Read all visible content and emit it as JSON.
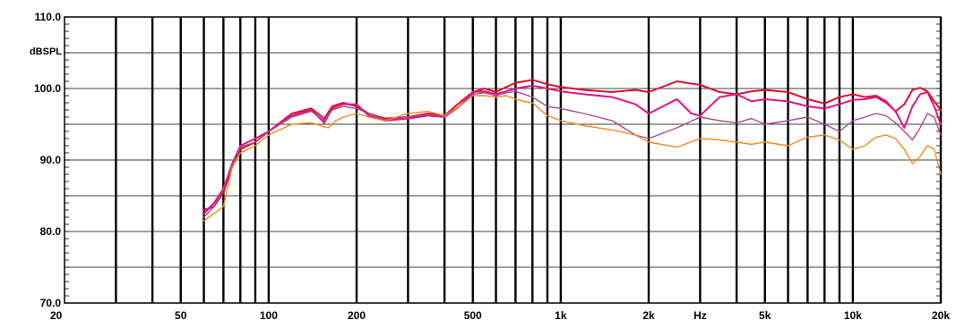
{
  "chart_data": {
    "type": "line",
    "y_unit_label": "dBSPL",
    "x_unit_label": "Hz",
    "x_scale": "log",
    "xlim": [
      20,
      20000
    ],
    "ylim": [
      70,
      110
    ],
    "grid": true,
    "y_ticks": [
      {
        "value": 110,
        "label": "110.0"
      },
      {
        "value": 100,
        "label": "100.0"
      },
      {
        "value": 90,
        "label": "90.0"
      },
      {
        "value": 80,
        "label": "80.0"
      },
      {
        "value": 70,
        "label": "70.0"
      }
    ],
    "y_gridlines": [
      75,
      80,
      85,
      90,
      95,
      100,
      105
    ],
    "x_ticks": [
      {
        "value": 20,
        "label": "20"
      },
      {
        "value": 50,
        "label": "50"
      },
      {
        "value": 100,
        "label": "100"
      },
      {
        "value": 200,
        "label": "200"
      },
      {
        "value": 500,
        "label": "500"
      },
      {
        "value": 1000,
        "label": "1k"
      },
      {
        "value": 2000,
        "label": "2k"
      },
      {
        "value": 5000,
        "label": "5k"
      },
      {
        "value": 10000,
        "label": "10k"
      },
      {
        "value": 20000,
        "label": "20k"
      }
    ],
    "x_gridlines": [
      30,
      40,
      50,
      60,
      70,
      80,
      90,
      100,
      200,
      300,
      400,
      500,
      600,
      700,
      800,
      900,
      1000,
      2000,
      3000,
      4000,
      5000,
      6000,
      7000,
      8000,
      9000,
      10000,
      20000
    ],
    "series": [
      {
        "color": "#dc1030",
        "width": 2,
        "x": [
          60,
          65,
          70,
          75,
          80,
          90,
          100,
          120,
          140,
          155,
          165,
          180,
          200,
          220,
          250,
          300,
          350,
          400,
          450,
          500,
          550,
          600,
          650,
          700,
          750,
          800,
          900,
          1000,
          1200,
          1500,
          1800,
          2000,
          2500,
          3000,
          3500,
          4000,
          4500,
          5000,
          6000,
          7000,
          8000,
          9000,
          10000,
          11000,
          12000,
          13000,
          14000,
          15000,
          16000,
          17000,
          18000,
          19000,
          20000
        ],
        "y": [
          83,
          83.5,
          85.5,
          89,
          91.5,
          92.5,
          94,
          96.5,
          97.2,
          95.8,
          97.5,
          98,
          97.5,
          96.5,
          95.8,
          96,
          96.5,
          96.2,
          98,
          99.5,
          100,
          99.5,
          100.2,
          100.8,
          101,
          101.2,
          100.6,
          100.2,
          99.8,
          99.5,
          99.8,
          99.5,
          101,
          100.5,
          99.5,
          99.2,
          99.6,
          99.8,
          99.5,
          98.5,
          97.9,
          98.8,
          99.2,
          98.8,
          99,
          98.2,
          96.8,
          97.8,
          99.8,
          100.1,
          99.6,
          98.2,
          97
        ]
      },
      {
        "color": "#e0148a",
        "width": 2,
        "x": [
          60,
          65,
          70,
          75,
          80,
          90,
          100,
          120,
          140,
          155,
          165,
          180,
          200,
          220,
          250,
          300,
          350,
          400,
          450,
          500,
          550,
          600,
          650,
          700,
          750,
          800,
          900,
          1000,
          1200,
          1500,
          1800,
          2000,
          2500,
          2800,
          3000,
          3500,
          4000,
          4500,
          5000,
          6000,
          7000,
          8000,
          9000,
          10000,
          11000,
          12000,
          13000,
          14000,
          15000,
          16000,
          17000,
          18000,
          19000,
          20000
        ],
        "y": [
          82.5,
          84,
          86,
          89.5,
          92,
          93,
          94,
          96.2,
          97,
          95.2,
          97.2,
          97.8,
          97.8,
          96.2,
          95.5,
          95.8,
          96.2,
          96,
          97.5,
          99.5,
          99.6,
          99.2,
          99.6,
          100,
          100.2,
          100.4,
          100,
          99.6,
          99.2,
          98.8,
          97.8,
          96.5,
          98.5,
          96.5,
          96.2,
          98.8,
          99.2,
          98.2,
          98.5,
          98.2,
          97.5,
          97.2,
          97.8,
          98.4,
          98.5,
          98.8,
          98,
          96.8,
          94.5,
          97.5,
          99.2,
          99.5,
          97.5,
          95
        ]
      },
      {
        "color": "#a84a90",
        "width": 1.4,
        "x": [
          60,
          65,
          70,
          75,
          80,
          90,
          100,
          120,
          140,
          155,
          165,
          180,
          200,
          220,
          250,
          300,
          350,
          400,
          450,
          500,
          550,
          600,
          650,
          700,
          750,
          800,
          900,
          1000,
          1200,
          1500,
          1800,
          2000,
          2500,
          3000,
          3500,
          4000,
          4500,
          5000,
          6000,
          7000,
          8000,
          9000,
          10000,
          11000,
          12000,
          13000,
          14000,
          15000,
          16000,
          17000,
          18000,
          19000,
          20000
        ],
        "y": [
          82,
          83.5,
          86,
          89.5,
          91.8,
          92.5,
          94,
          96,
          96.8,
          95.5,
          97,
          97.5,
          97.2,
          96.5,
          95.6,
          96,
          96.3,
          96,
          97.5,
          99.2,
          99.4,
          99,
          99.4,
          99.6,
          99.2,
          98.8,
          97.5,
          97.2,
          96.5,
          95.5,
          93.5,
          93,
          94.5,
          96,
          95.5,
          95.2,
          95.8,
          95,
          95.5,
          96,
          95,
          94,
          95.5,
          96,
          96.5,
          96.2,
          95.2,
          94,
          92.8,
          94.5,
          96.5,
          96,
          93.5
        ]
      },
      {
        "color": "#f08a1c",
        "width": 1.4,
        "x": [
          60,
          65,
          70,
          75,
          80,
          90,
          100,
          120,
          140,
          160,
          170,
          180,
          200,
          220,
          250,
          300,
          350,
          400,
          450,
          500,
          550,
          600,
          650,
          700,
          750,
          800,
          900,
          1000,
          1200,
          1500,
          1800,
          2000,
          2500,
          3000,
          3500,
          4000,
          4500,
          5000,
          6000,
          7000,
          8000,
          9000,
          10000,
          11000,
          12000,
          13000,
          14000,
          15000,
          16000,
          17000,
          18000,
          19000,
          20000
        ],
        "y": [
          81.5,
          82.5,
          83.5,
          89,
          91,
          92,
          93.5,
          95,
          95.2,
          94.5,
          95.5,
          96,
          96.5,
          96,
          95.5,
          96.5,
          96.8,
          96.2,
          97.5,
          99,
          99,
          98.8,
          99,
          98.5,
          98.2,
          98,
          96.2,
          95.5,
          94.8,
          94.2,
          93.5,
          92.5,
          91.8,
          93,
          92.8,
          92.5,
          92.2,
          92.5,
          92,
          93.2,
          93.5,
          92.8,
          91.5,
          92,
          93.2,
          93.5,
          93,
          91.5,
          89.5,
          90.5,
          92,
          91.5,
          88
        ]
      }
    ]
  }
}
